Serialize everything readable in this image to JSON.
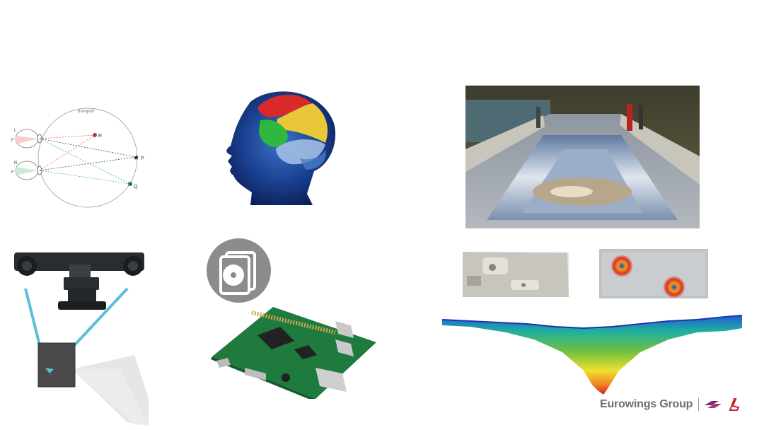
{
  "horopter": {
    "label_top": "horopter",
    "eye_left": "L",
    "eye_right": "R",
    "fovea_left_top": "F",
    "fovea_left_bottom": "F",
    "point_r": "R",
    "point_p": "P",
    "point_q": "Q"
  },
  "logo": {
    "text": "Eurowings Group"
  },
  "colors": {
    "camera_lines": "#5bc0d6",
    "icon_bg": "#8c8c8c",
    "logo_text": "#6f6f6f",
    "logo_mark_purple": "#7b2d6d",
    "logo_mark_red": "#d0202c"
  }
}
